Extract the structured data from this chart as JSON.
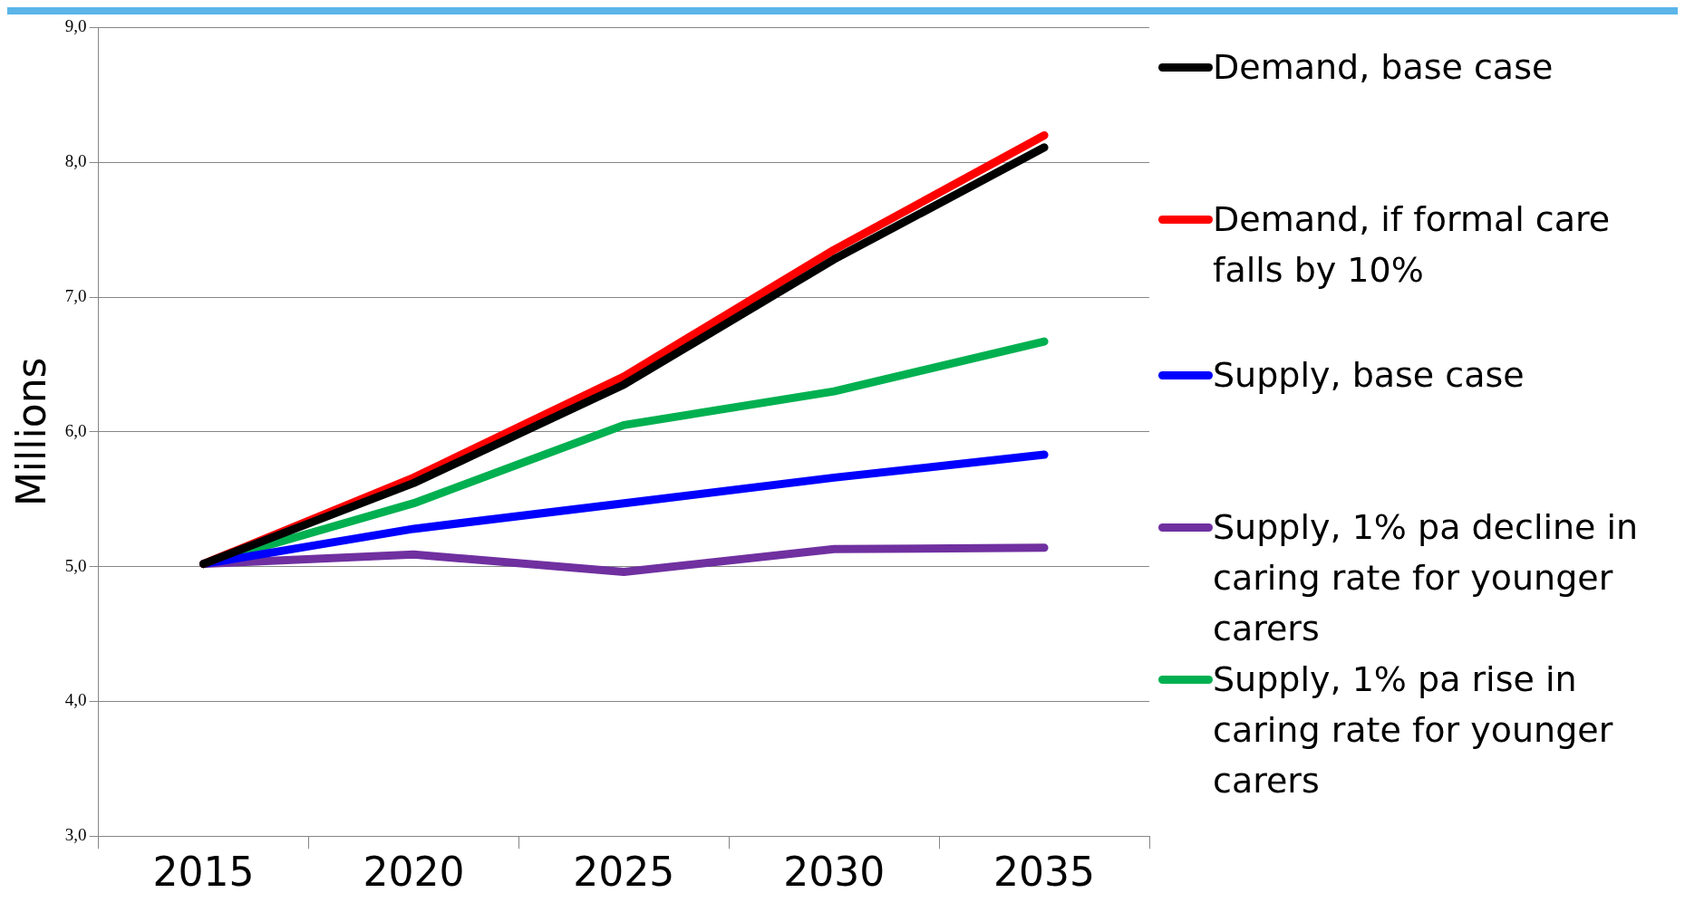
{
  "chart_data": {
    "type": "line",
    "ylabel": "Millions",
    "categories": [
      "2015",
      "2020",
      "2025",
      "2030",
      "2035"
    ],
    "series": [
      {
        "name": "Demand, base case",
        "color": "#000000",
        "values": [
          5.02,
          5.62,
          6.35,
          7.28,
          8.11
        ]
      },
      {
        "name": "Demand, if formal care falls by 10%",
        "color": "#ff0000",
        "values": [
          5.02,
          5.66,
          6.41,
          7.35,
          8.2
        ]
      },
      {
        "name": "Supply, base case",
        "color": "#0000ff",
        "values": [
          5.02,
          5.28,
          5.47,
          5.66,
          5.83
        ]
      },
      {
        "name": "Supply, 1% pa decline in caring rate for younger carers",
        "color": "#7030a0",
        "values": [
          5.02,
          5.09,
          4.96,
          5.13,
          5.14
        ]
      },
      {
        "name": "Supply, 1% pa rise in caring rate for younger carers",
        "color": "#00b050",
        "values": [
          5.02,
          5.47,
          6.05,
          6.3,
          6.67
        ]
      }
    ],
    "ylim": [
      3,
      9
    ],
    "yticks": [
      {
        "value": 3,
        "label": "3,0"
      },
      {
        "value": 4,
        "label": "4,0"
      },
      {
        "value": 5,
        "label": "5,0"
      },
      {
        "value": 6,
        "label": "6,0"
      },
      {
        "value": 7,
        "label": "7,0"
      },
      {
        "value": 8,
        "label": "8,0"
      },
      {
        "value": 9,
        "label": "9,0"
      }
    ],
    "grid": "y",
    "legend": "right",
    "marker": "none",
    "line_style": "solid"
  }
}
